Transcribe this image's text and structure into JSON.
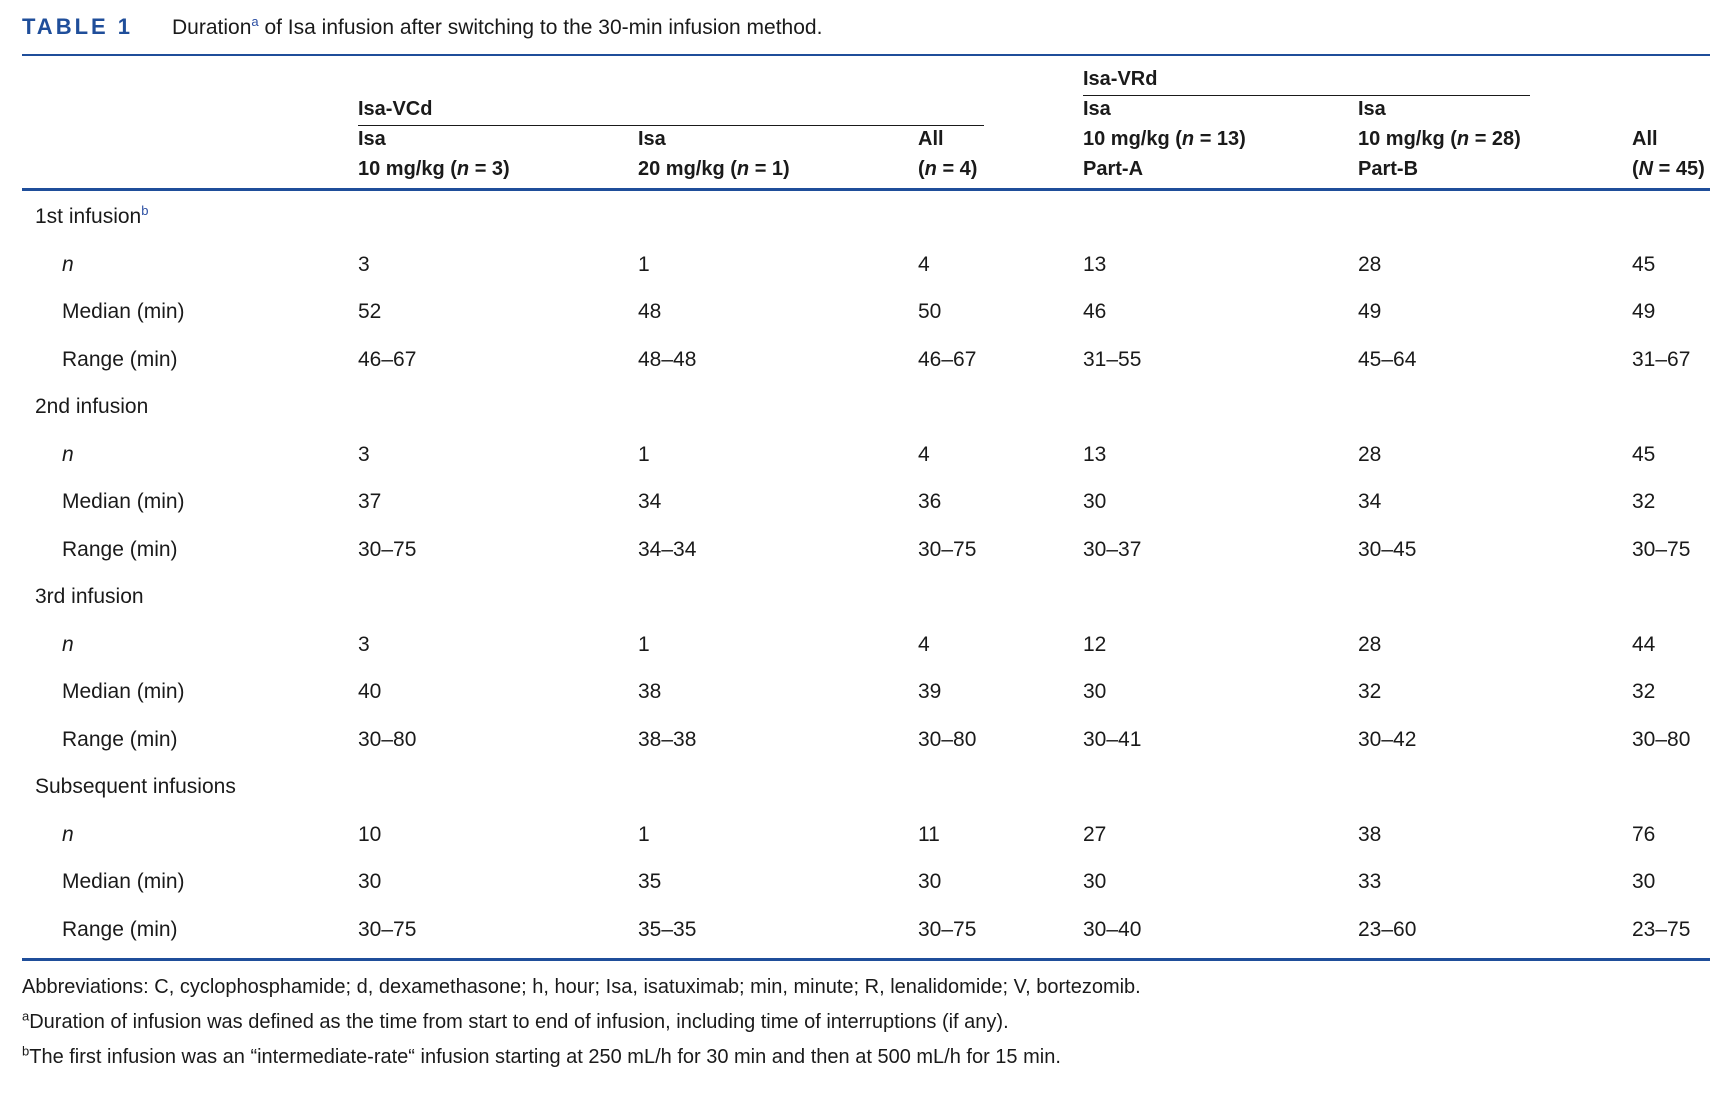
{
  "table": {
    "label": "TABLE 1",
    "caption_pre": "Duration",
    "caption_sup": "a",
    "caption_post": " of Isa infusion after switching to the 30-min infusion method."
  },
  "header": {
    "group1": {
      "name": "Isa-VCd"
    },
    "group2": {
      "name": "Isa-VRd"
    },
    "columns": [
      {
        "line1": "Isa",
        "line2_a": "10 mg/kg (",
        "line2_n": "n",
        "line2_b": " = 3)",
        "line3": ""
      },
      {
        "line1": "Isa",
        "line2_a": "20 mg/kg (",
        "line2_n": "n",
        "line2_b": " = 1)",
        "line3": ""
      },
      {
        "line1": "All",
        "line2_a": "(",
        "line2_n": "n",
        "line2_b": " = 4)",
        "line3": ""
      },
      {
        "line1": "Isa",
        "line2_a": "10 mg/kg (",
        "line2_n": "n",
        "line2_b": " = 13)",
        "line3": "Part-A"
      },
      {
        "line1": "Isa",
        "line2_a": "10 mg/kg (",
        "line2_n": "n",
        "line2_b": " = 28)",
        "line3": "Part-B"
      },
      {
        "line1": "All",
        "line2_a": "(",
        "line2_n": "N",
        "line2_b": " = 45)",
        "line3": ""
      }
    ]
  },
  "sections": [
    {
      "title": "1st infusion",
      "title_sup": "b",
      "rows": [
        {
          "label": "n",
          "values": [
            "3",
            "1",
            "4",
            "13",
            "28",
            "45"
          ]
        },
        {
          "label": "Median (min)",
          "values": [
            "52",
            "48",
            "50",
            "46",
            "49",
            "49"
          ]
        },
        {
          "label": "Range (min)",
          "values": [
            "46–67",
            "48–48",
            "46–67",
            "31–55",
            "45–64",
            "31–67"
          ]
        }
      ]
    },
    {
      "title": "2nd infusion",
      "title_sup": "",
      "rows": [
        {
          "label": "n",
          "values": [
            "3",
            "1",
            "4",
            "13",
            "28",
            "45"
          ]
        },
        {
          "label": "Median (min)",
          "values": [
            "37",
            "34",
            "36",
            "30",
            "34",
            "32"
          ]
        },
        {
          "label": "Range (min)",
          "values": [
            "30–75",
            "34–34",
            "30–75",
            "30–37",
            "30–45",
            "30–75"
          ]
        }
      ]
    },
    {
      "title": "3rd infusion",
      "title_sup": "",
      "rows": [
        {
          "label": "n",
          "values": [
            "3",
            "1",
            "4",
            "12",
            "28",
            "44"
          ]
        },
        {
          "label": "Median (min)",
          "values": [
            "40",
            "38",
            "39",
            "30",
            "32",
            "32"
          ]
        },
        {
          "label": "Range (min)",
          "values": [
            "30–80",
            "38–38",
            "30–80",
            "30–41",
            "30–42",
            "30–80"
          ]
        }
      ]
    },
    {
      "title": "Subsequent infusions",
      "title_sup": "",
      "rows": [
        {
          "label": "n",
          "values": [
            "10",
            "1",
            "11",
            "27",
            "38",
            "76"
          ]
        },
        {
          "label": "Median (min)",
          "values": [
            "30",
            "35",
            "30",
            "30",
            "33",
            "30"
          ]
        },
        {
          "label": "Range (min)",
          "values": [
            "30–75",
            "35–35",
            "30–75",
            "30–40",
            "23–60",
            "23–75"
          ]
        }
      ]
    }
  ],
  "footnotes": {
    "abbreviations": "Abbreviations: C, cyclophosphamide; d, dexamethasone; h, hour; Isa, isatuximab; min, minute; R, lenalidomide; V, bortezomib.",
    "a_mark": "a",
    "a_text": "Duration of infusion was defined as the time from start to end of infusion, including time of interruptions (if any).",
    "b_mark": "b",
    "b_text": "The first infusion was an “intermediate-rate“ infusion starting at 250 mL/h for 30 min and then at 500 mL/h for 15 min."
  }
}
